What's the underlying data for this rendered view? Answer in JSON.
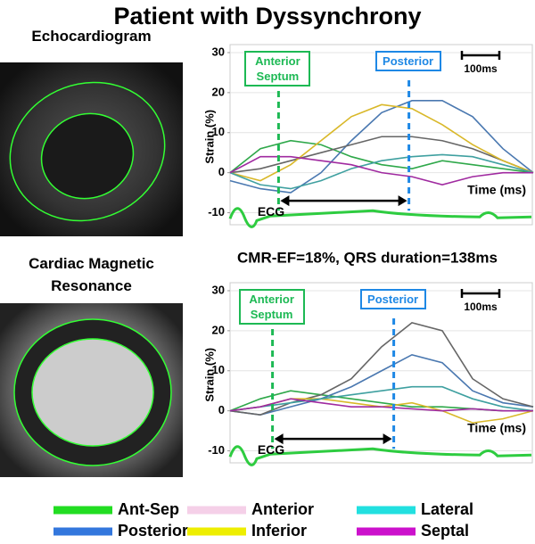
{
  "title": "Patient with Dyssynchrony",
  "chart_data": [
    {
      "type": "line",
      "image_label": "Echocardiogram",
      "ylabel": "Strain (%)",
      "xlabel": "Time (ms)",
      "ecg_label": "ECG",
      "scale_label": "100ms",
      "x": [
        0,
        1,
        2,
        3,
        4,
        5,
        6,
        7,
        8,
        9,
        10
      ],
      "xlim": [
        0,
        10
      ],
      "ylim": [
        -13,
        32
      ],
      "yticks": [
        -10,
        0,
        10,
        20,
        30
      ],
      "grid": true,
      "markers": [
        {
          "label": "Anterior Septum",
          "x": 1.6,
          "color": "#1db954"
        },
        {
          "label": "Posterior",
          "x": 5.9,
          "color": "#1e88e5"
        }
      ],
      "series": [
        {
          "name": "Ant-Sep",
          "color": "#2fa84a",
          "values": [
            0,
            6,
            8,
            7,
            4,
            2,
            1,
            3,
            2,
            1,
            0
          ]
        },
        {
          "name": "Posterior",
          "color": "#4a78b0",
          "values": [
            -2,
            -4,
            -5,
            0,
            8,
            15,
            18,
            18,
            14,
            6,
            0
          ]
        },
        {
          "name": "Anterior",
          "color": "#666666",
          "values": [
            0,
            1,
            3,
            5,
            7,
            9,
            9,
            8,
            6,
            3,
            0
          ]
        },
        {
          "name": "Inferior",
          "color": "#d9b829",
          "values": [
            0,
            -2,
            2,
            8,
            14,
            17,
            16,
            12,
            7,
            3,
            0
          ]
        },
        {
          "name": "Lateral",
          "color": "#3fa0a0",
          "values": [
            0,
            -3,
            -4,
            -2,
            1,
            3,
            4,
            4.5,
            4,
            2,
            0
          ]
        },
        {
          "name": "Septal",
          "color": "#a02aa0",
          "values": [
            0,
            4,
            4,
            3,
            2,
            0,
            -1,
            -3,
            -1,
            0,
            0
          ]
        }
      ]
    },
    {
      "type": "line",
      "image_label": "Cardiac Magnetic Resonance",
      "subtitle": "CMR-EF=18%, QRS duration=138ms",
      "ylabel": "Strain (%)",
      "xlabel": "Time (ms)",
      "ecg_label": "ECG",
      "scale_label": "100ms",
      "x": [
        0,
        1,
        2,
        3,
        4,
        5,
        6,
        7,
        8,
        9,
        10
      ],
      "xlim": [
        0,
        10
      ],
      "ylim": [
        -13,
        32
      ],
      "yticks": [
        -10,
        0,
        10,
        20,
        30
      ],
      "grid": true,
      "markers": [
        {
          "label": "Anterior Septum",
          "x": 1.4,
          "color": "#1db954"
        },
        {
          "label": "Posterior",
          "x": 5.4,
          "color": "#1e88e5"
        }
      ],
      "series": [
        {
          "name": "Ant-Sep",
          "color": "#2fa84a",
          "values": [
            0,
            3,
            5,
            4,
            3,
            2,
            1,
            1,
            0.5,
            0,
            0
          ]
        },
        {
          "name": "Posterior",
          "color": "#4a78b0",
          "values": [
            0,
            -1,
            1,
            3,
            6,
            10,
            14,
            12,
            5,
            2,
            1
          ]
        },
        {
          "name": "Anterior",
          "color": "#666666",
          "values": [
            0,
            -1,
            2,
            4,
            8,
            16,
            22,
            20,
            8,
            3,
            1
          ]
        },
        {
          "name": "Inferior",
          "color": "#d9b829",
          "values": [
            0,
            1,
            3,
            3,
            2,
            1,
            2,
            0,
            -3,
            -2,
            0
          ]
        },
        {
          "name": "Lateral",
          "color": "#3fa0a0",
          "values": [
            0,
            1,
            2,
            3,
            4,
            5,
            6,
            6,
            3,
            1,
            0
          ]
        },
        {
          "name": "Septal",
          "color": "#a02aa0",
          "values": [
            0,
            1,
            3,
            2,
            1,
            1,
            0.5,
            0,
            0.5,
            0,
            0
          ]
        }
      ]
    }
  ],
  "legend": [
    {
      "name": "Ant-Sep",
      "color": "#22dd22"
    },
    {
      "name": "Posterior",
      "color": "#3377dd"
    },
    {
      "name": "Anterior",
      "color": "#f5d0e8"
    },
    {
      "name": "Inferior",
      "color": "#eeee00"
    },
    {
      "name": "Lateral",
      "color": "#22e0e0"
    },
    {
      "name": "Septal",
      "color": "#cc11cc"
    }
  ]
}
